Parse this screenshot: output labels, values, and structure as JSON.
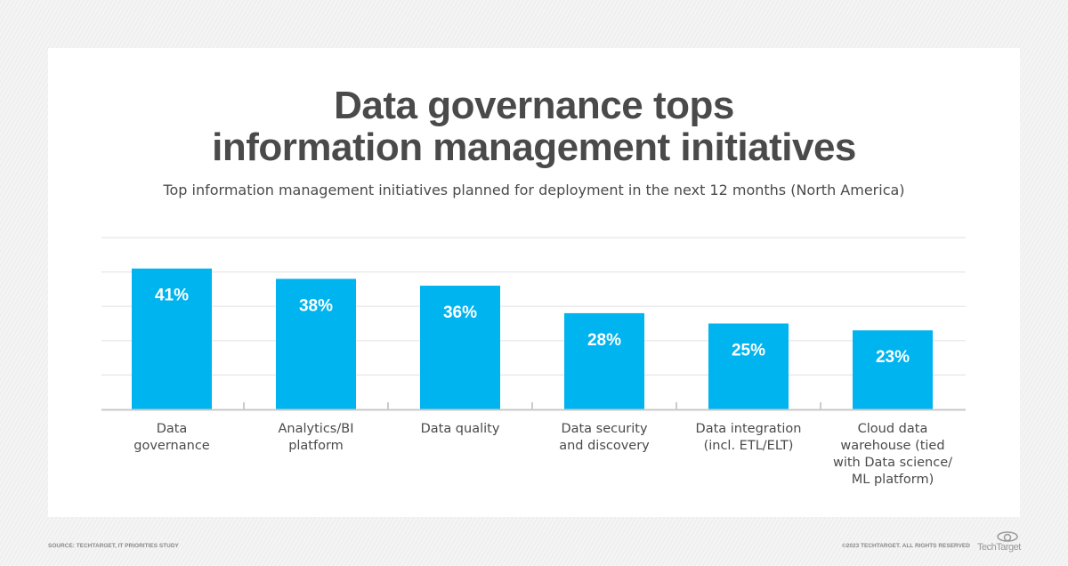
{
  "title_line1": "Data governance tops",
  "title_line2": "information management initiatives",
  "subtitle": "Top information management initiatives planned for deployment in the next 12 months (North America)",
  "source": "SOURCE: TECHTARGET, IT PRIORITIES STUDY",
  "copyright": "©2023 TECHTARGET. ALL RIGHTS RESERVED",
  "logo_text": "TechTarget",
  "chart_data": {
    "type": "bar",
    "categories": [
      [
        "Data",
        "governance"
      ],
      [
        "Analytics/BI",
        "platform"
      ],
      [
        "Data quality"
      ],
      [
        "Data security",
        "and discovery"
      ],
      [
        "Data integration",
        "(incl. ETL/ELT)"
      ],
      [
        "Cloud data",
        "warehouse (tied",
        "with Data science/",
        "ML platform)"
      ]
    ],
    "values": [
      41,
      38,
      36,
      28,
      25,
      23
    ],
    "data_labels": [
      "41%",
      "38%",
      "36%",
      "28%",
      "25%",
      "23%"
    ],
    "unit": "%",
    "ylim": [
      0,
      50
    ],
    "grid": true,
    "bar_color": "#00b4f0",
    "text_color": "#4a4a4a"
  }
}
